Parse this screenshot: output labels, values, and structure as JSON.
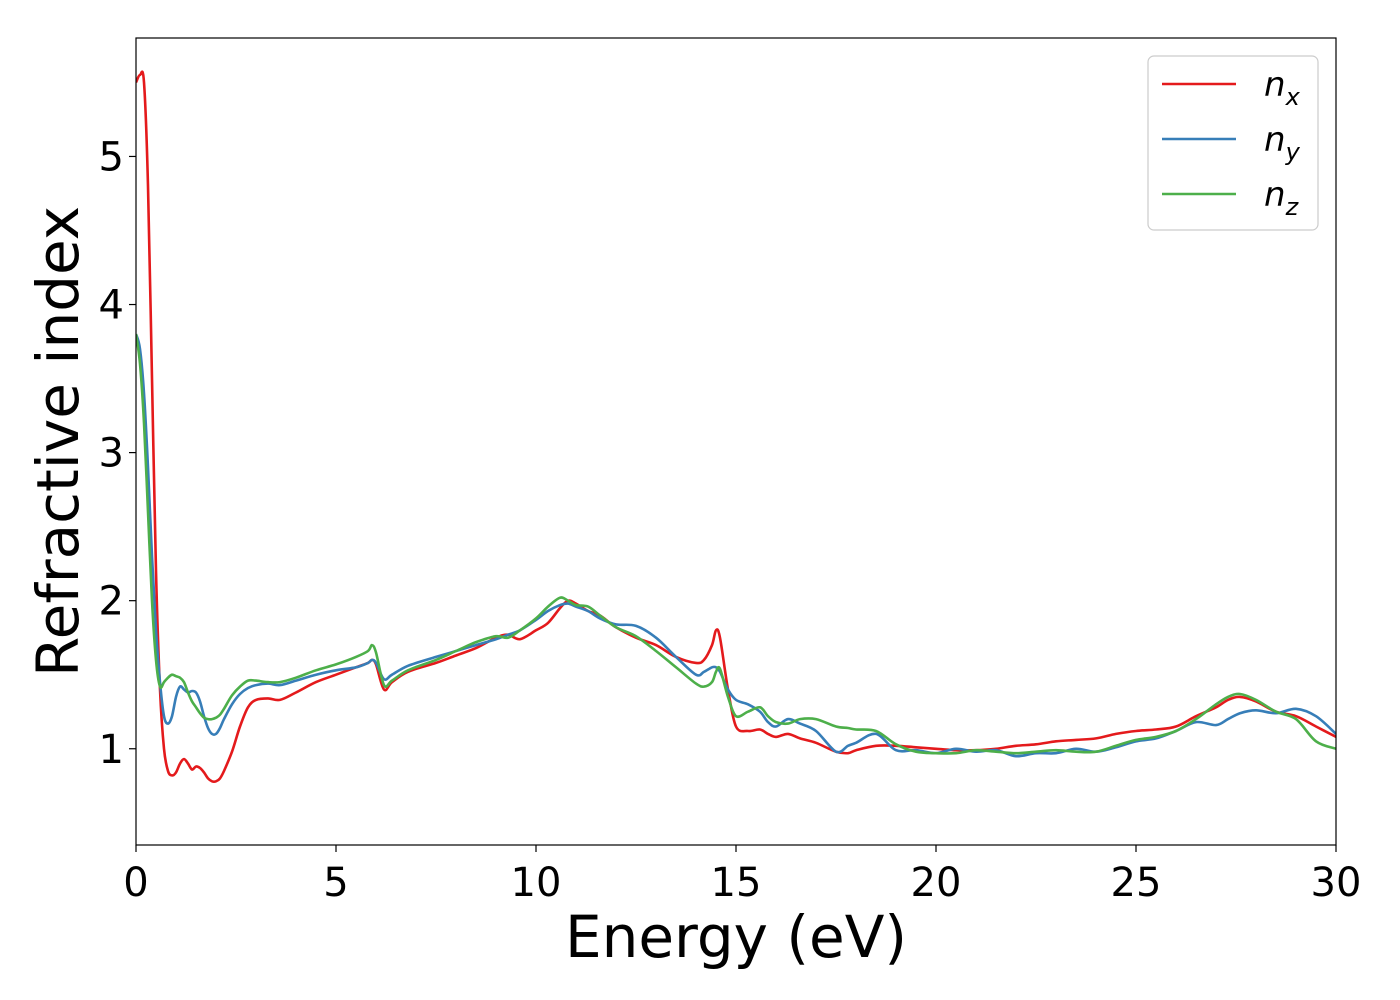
{
  "chart_data": {
    "type": "line",
    "xlabel": "Energy (eV)",
    "ylabel": "Refractive index",
    "xlim": [
      0,
      30
    ],
    "ylim": [
      0.35,
      5.8
    ],
    "xticks": [
      0,
      5,
      10,
      15,
      20,
      25,
      30
    ],
    "xtick_labels": [
      "0",
      "5",
      "10",
      "15",
      "20",
      "25",
      "30"
    ],
    "yticks": [
      1,
      2,
      3,
      4,
      5
    ],
    "ytick_labels": [
      "1",
      "2",
      "3",
      "4",
      "5"
    ],
    "grid": false,
    "legend_position": "top-right",
    "series": [
      {
        "name": "n_x",
        "label_base": "n",
        "label_sub": "x",
        "color": "#e41a1c",
        "x": [
          0,
          0.1,
          0.2,
          0.3,
          0.4,
          0.5,
          0.6,
          0.7,
          0.8,
          0.9,
          1.0,
          1.1,
          1.2,
          1.3,
          1.4,
          1.5,
          1.6,
          1.7,
          1.8,
          1.9,
          2.0,
          2.1,
          2.2,
          2.4,
          2.6,
          2.8,
          3.0,
          3.3,
          3.6,
          4.0,
          4.5,
          5.0,
          5.5,
          5.8,
          5.9,
          6.0,
          6.2,
          6.4,
          6.8,
          7.5,
          8.0,
          8.5,
          9.0,
          9.3,
          9.6,
          10.0,
          10.3,
          10.6,
          10.8,
          11.0,
          11.3,
          11.6,
          12.0,
          12.5,
          13.0,
          13.5,
          14.0,
          14.2,
          14.4,
          14.5,
          14.6,
          14.8,
          15.0,
          15.3,
          15.6,
          15.8,
          16.0,
          16.3,
          16.6,
          17.0,
          17.5,
          17.8,
          18.0,
          18.5,
          19.0,
          19.5,
          20.0,
          20.5,
          21.0,
          21.5,
          22.0,
          22.5,
          23.0,
          23.5,
          24.0,
          24.5,
          25.0,
          25.5,
          26.0,
          26.5,
          27.0,
          27.3,
          27.6,
          28.0,
          28.5,
          29.0,
          29.5,
          30.0
        ],
        "y": [
          5.5,
          5.55,
          5.5,
          4.8,
          3.5,
          2.2,
          1.4,
          1.0,
          0.85,
          0.82,
          0.84,
          0.9,
          0.93,
          0.9,
          0.86,
          0.88,
          0.87,
          0.84,
          0.8,
          0.78,
          0.78,
          0.8,
          0.85,
          0.98,
          1.15,
          1.28,
          1.33,
          1.34,
          1.33,
          1.38,
          1.45,
          1.5,
          1.55,
          1.58,
          1.6,
          1.57,
          1.4,
          1.45,
          1.52,
          1.58,
          1.63,
          1.68,
          1.75,
          1.77,
          1.74,
          1.8,
          1.85,
          1.95,
          2.0,
          1.98,
          1.93,
          1.9,
          1.82,
          1.75,
          1.7,
          1.62,
          1.58,
          1.6,
          1.7,
          1.8,
          1.75,
          1.4,
          1.15,
          1.12,
          1.13,
          1.1,
          1.08,
          1.1,
          1.07,
          1.04,
          0.98,
          0.97,
          0.99,
          1.02,
          1.02,
          1.01,
          1.0,
          0.99,
          0.99,
          1.0,
          1.02,
          1.03,
          1.05,
          1.06,
          1.07,
          1.1,
          1.12,
          1.13,
          1.15,
          1.22,
          1.28,
          1.33,
          1.35,
          1.32,
          1.25,
          1.22,
          1.15,
          1.08
        ]
      },
      {
        "name": "n_y",
        "label_base": "n",
        "label_sub": "y",
        "color": "#377eb8",
        "x": [
          0,
          0.1,
          0.2,
          0.3,
          0.4,
          0.5,
          0.6,
          0.7,
          0.8,
          0.9,
          1.0,
          1.1,
          1.2,
          1.3,
          1.4,
          1.5,
          1.6,
          1.7,
          1.8,
          1.9,
          2.0,
          2.1,
          2.2,
          2.4,
          2.6,
          2.8,
          3.0,
          3.3,
          3.6,
          4.0,
          4.5,
          5.0,
          5.5,
          5.8,
          5.9,
          6.0,
          6.2,
          6.4,
          6.8,
          7.5,
          8.0,
          8.5,
          9.0,
          9.3,
          9.6,
          10.0,
          10.3,
          10.6,
          10.8,
          11.0,
          11.3,
          11.6,
          12.0,
          12.5,
          13.0,
          13.5,
          14.0,
          14.2,
          14.4,
          14.5,
          14.6,
          14.8,
          15.0,
          15.3,
          15.6,
          15.8,
          16.0,
          16.3,
          16.6,
          17.0,
          17.5,
          17.8,
          18.0,
          18.5,
          19.0,
          19.5,
          20.0,
          20.5,
          21.0,
          21.5,
          22.0,
          22.5,
          23.0,
          23.5,
          24.0,
          24.5,
          25.0,
          25.5,
          26.0,
          26.5,
          27.0,
          27.3,
          27.6,
          28.0,
          28.5,
          29.0,
          29.5,
          30.0
        ],
        "y": [
          3.8,
          3.7,
          3.4,
          2.9,
          2.3,
          1.8,
          1.45,
          1.22,
          1.17,
          1.22,
          1.35,
          1.42,
          1.4,
          1.38,
          1.39,
          1.38,
          1.32,
          1.22,
          1.14,
          1.1,
          1.1,
          1.14,
          1.2,
          1.3,
          1.37,
          1.41,
          1.43,
          1.44,
          1.43,
          1.46,
          1.5,
          1.53,
          1.55,
          1.58,
          1.6,
          1.58,
          1.47,
          1.5,
          1.56,
          1.62,
          1.66,
          1.7,
          1.74,
          1.77,
          1.8,
          1.87,
          1.93,
          1.97,
          1.98,
          1.96,
          1.93,
          1.88,
          1.84,
          1.83,
          1.75,
          1.62,
          1.5,
          1.52,
          1.55,
          1.55,
          1.52,
          1.4,
          1.33,
          1.3,
          1.25,
          1.18,
          1.15,
          1.2,
          1.17,
          1.12,
          0.98,
          1.02,
          1.04,
          1.1,
          0.99,
          0.99,
          0.97,
          1.0,
          0.98,
          0.99,
          0.95,
          0.97,
          0.97,
          1.0,
          0.98,
          1.01,
          1.05,
          1.07,
          1.12,
          1.18,
          1.16,
          1.2,
          1.24,
          1.26,
          1.24,
          1.27,
          1.22,
          1.1
        ]
      },
      {
        "name": "n_z",
        "label_base": "n",
        "label_sub": "z",
        "color": "#4daf4a",
        "x": [
          0,
          0.1,
          0.2,
          0.3,
          0.4,
          0.5,
          0.6,
          0.7,
          0.8,
          0.9,
          1.0,
          1.1,
          1.2,
          1.3,
          1.4,
          1.5,
          1.6,
          1.7,
          1.8,
          1.9,
          2.0,
          2.1,
          2.2,
          2.4,
          2.6,
          2.8,
          3.0,
          3.3,
          3.6,
          4.0,
          4.5,
          5.0,
          5.5,
          5.8,
          5.9,
          6.0,
          6.2,
          6.4,
          6.8,
          7.5,
          8.0,
          8.5,
          9.0,
          9.3,
          9.6,
          10.0,
          10.3,
          10.6,
          10.8,
          11.0,
          11.3,
          11.6,
          12.0,
          12.5,
          13.0,
          13.5,
          14.0,
          14.2,
          14.4,
          14.5,
          14.6,
          14.8,
          15.0,
          15.3,
          15.6,
          15.8,
          16.0,
          16.3,
          16.6,
          17.0,
          17.5,
          17.8,
          18.0,
          18.5,
          19.0,
          19.5,
          20.0,
          20.5,
          21.0,
          21.5,
          22.0,
          22.5,
          23.0,
          23.5,
          24.0,
          24.5,
          25.0,
          25.5,
          26.0,
          26.5,
          27.0,
          27.3,
          27.6,
          28.0,
          28.5,
          29.0,
          29.5,
          30.0
        ],
        "y": [
          3.8,
          3.6,
          3.2,
          2.6,
          2.0,
          1.6,
          1.42,
          1.45,
          1.48,
          1.5,
          1.49,
          1.48,
          1.45,
          1.38,
          1.32,
          1.28,
          1.24,
          1.21,
          1.2,
          1.2,
          1.21,
          1.23,
          1.27,
          1.36,
          1.42,
          1.46,
          1.46,
          1.45,
          1.45,
          1.48,
          1.53,
          1.57,
          1.62,
          1.66,
          1.7,
          1.65,
          1.43,
          1.46,
          1.53,
          1.6,
          1.66,
          1.72,
          1.76,
          1.75,
          1.8,
          1.88,
          1.96,
          2.02,
          2.0,
          1.97,
          1.96,
          1.9,
          1.82,
          1.76,
          1.66,
          1.55,
          1.44,
          1.42,
          1.45,
          1.52,
          1.54,
          1.35,
          1.22,
          1.25,
          1.28,
          1.22,
          1.18,
          1.17,
          1.2,
          1.2,
          1.15,
          1.14,
          1.13,
          1.12,
          1.03,
          0.98,
          0.97,
          0.97,
          0.99,
          0.98,
          0.97,
          0.98,
          0.99,
          0.98,
          0.98,
          1.02,
          1.06,
          1.08,
          1.12,
          1.2,
          1.3,
          1.35,
          1.37,
          1.33,
          1.25,
          1.2,
          1.05,
          1.0
        ]
      }
    ]
  }
}
